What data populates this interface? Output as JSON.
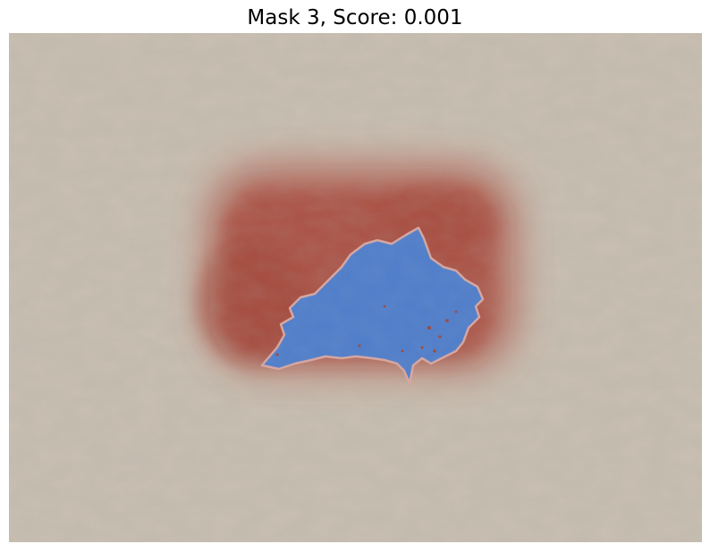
{
  "title": "Mask 3, Score: 0.001",
  "image": {
    "subject": "skin-lesion",
    "colors": {
      "background": "#c9bfb2",
      "lesion": "#b0584a",
      "mask": "#4f7cc9",
      "mask_outline": "#d9a7a0"
    }
  }
}
